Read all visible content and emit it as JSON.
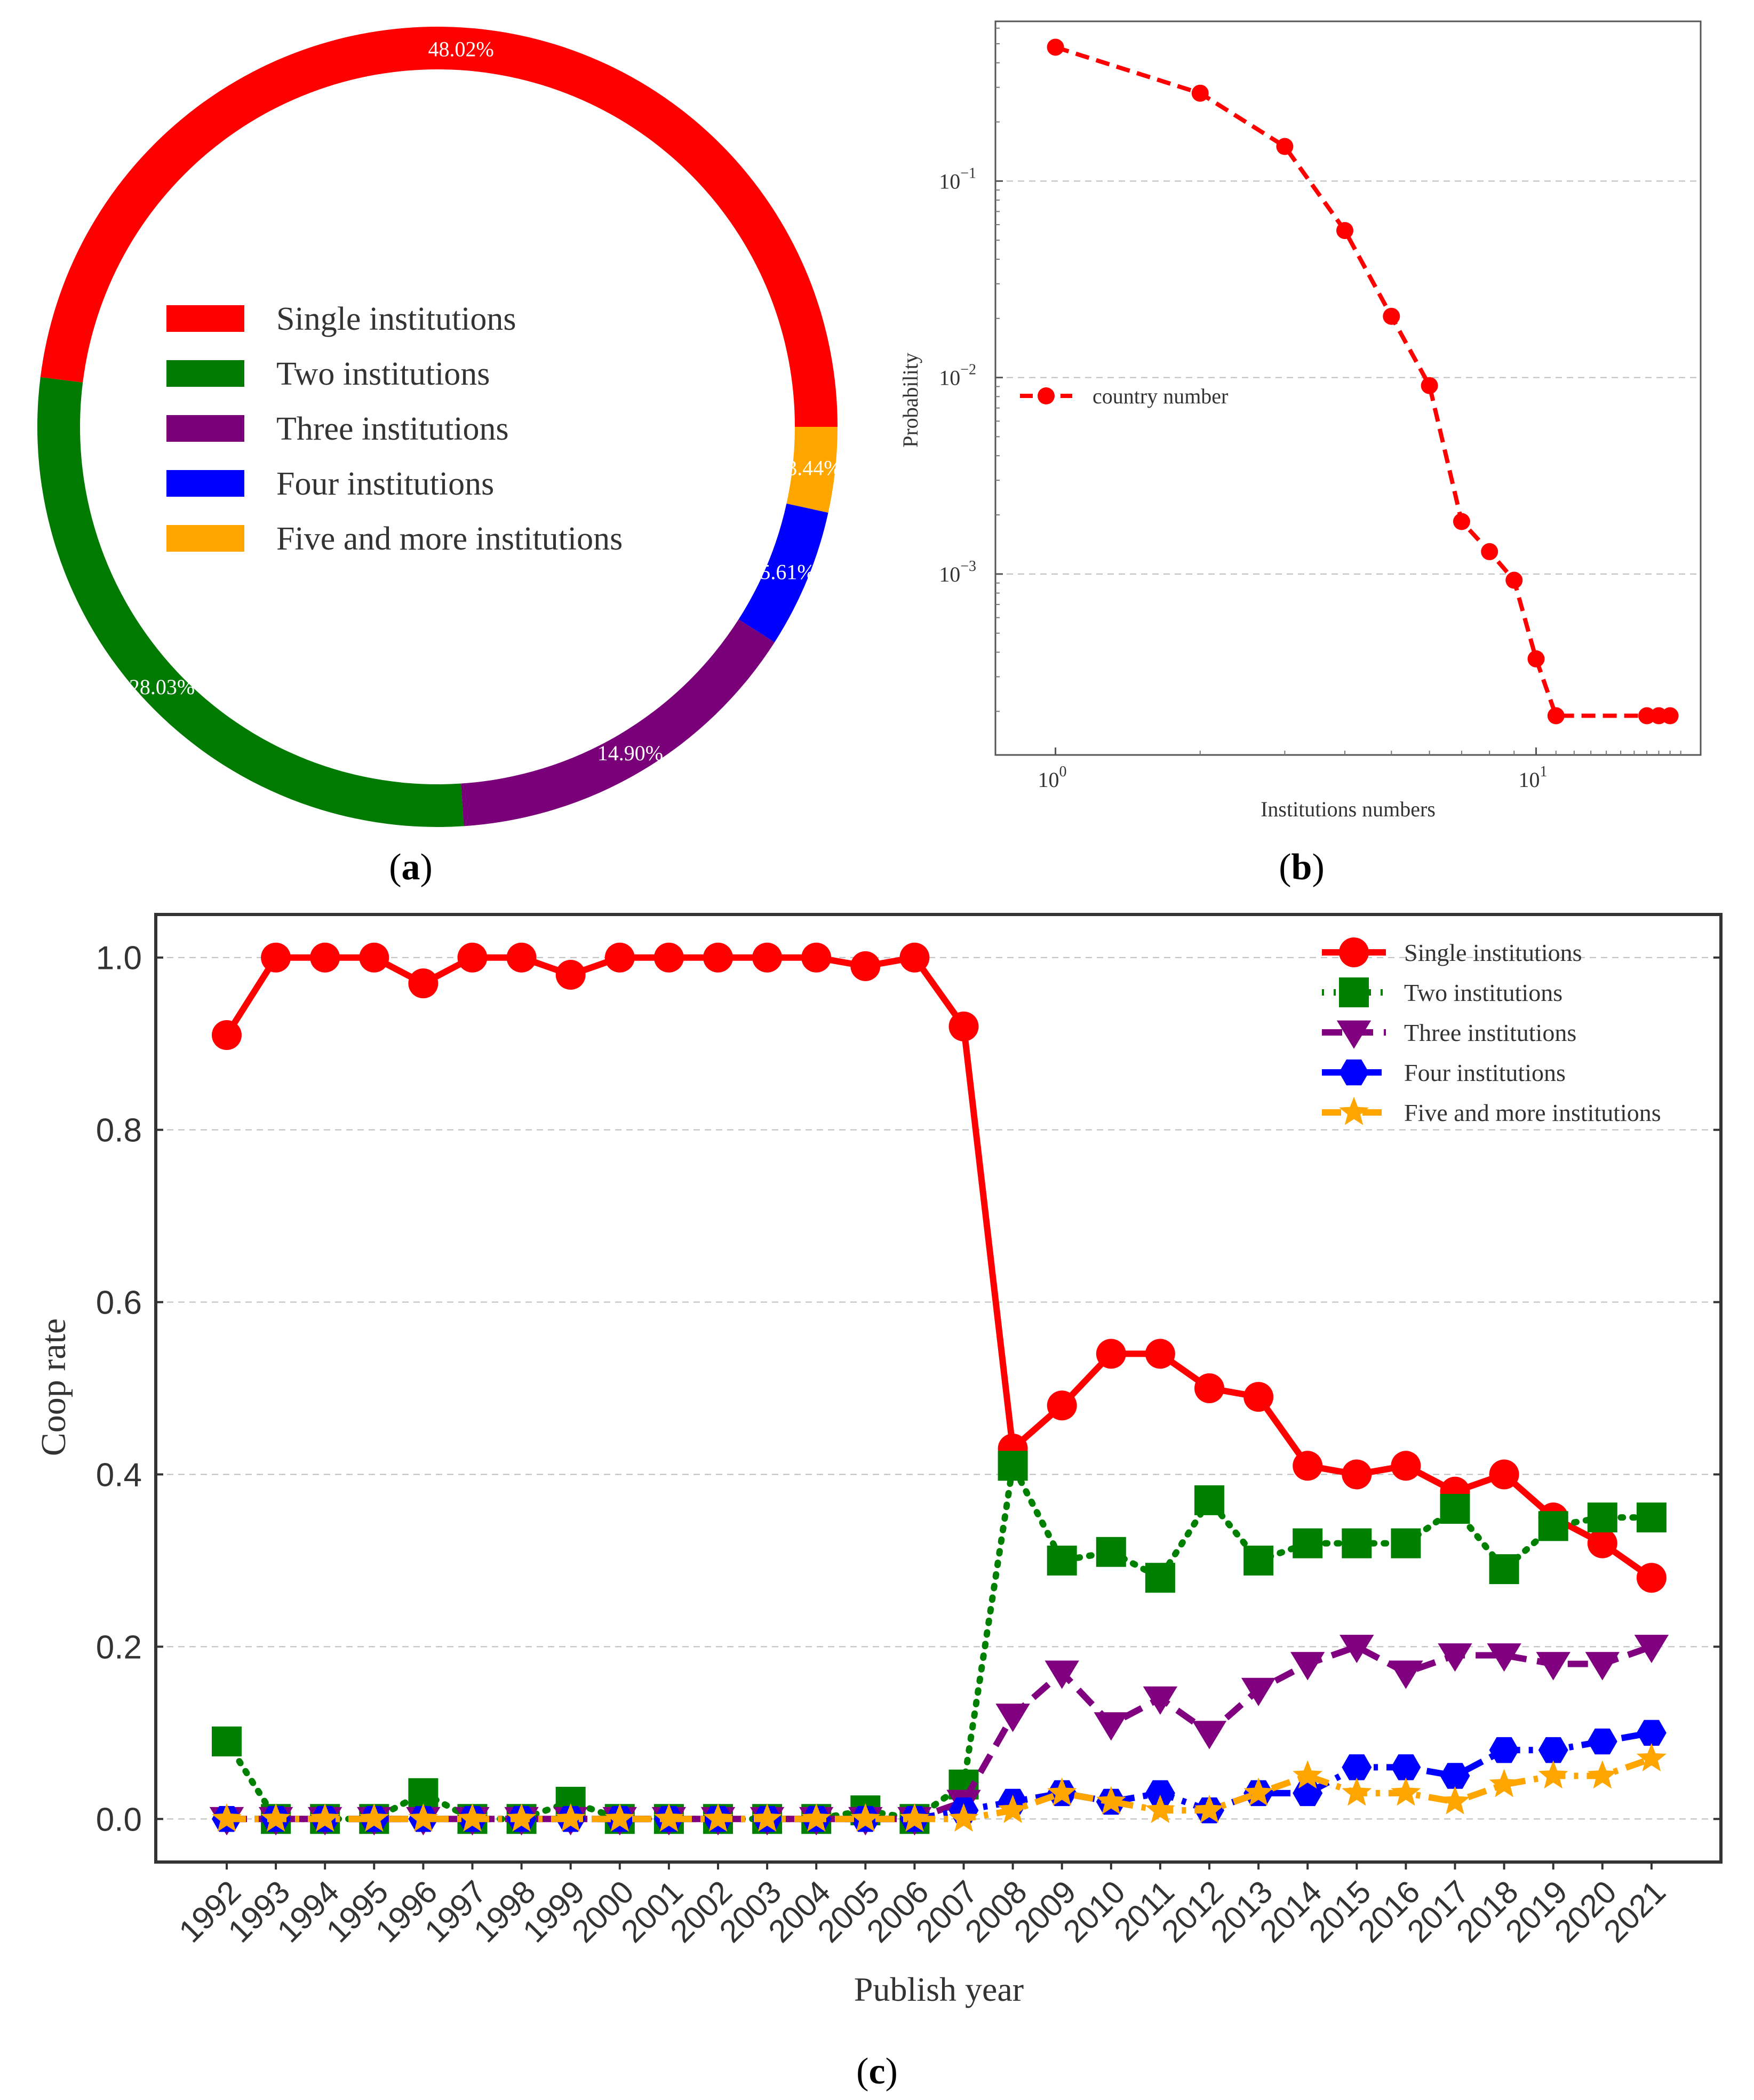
{
  "panels": {
    "a": {
      "label_open": "(",
      "label_letter": "a",
      "label_close": ")"
    },
    "b": {
      "label_open": "(",
      "label_letter": "b",
      "label_close": ")"
    },
    "c": {
      "label_open": "(",
      "label_letter": "c",
      "label_close": ")"
    }
  },
  "chart_data": [
    {
      "id": "a",
      "type": "pie",
      "style": "donut",
      "slices": [
        {
          "name": "Single institutions",
          "value": 48.02,
          "label": "48.02%",
          "color": "#ff0000"
        },
        {
          "name": "Two institutions",
          "value": 28.03,
          "label": "28.03%",
          "color": "#007a00"
        },
        {
          "name": "Three institutions",
          "value": 14.9,
          "label": "14.90%",
          "color": "#7a007a"
        },
        {
          "name": "Four institutions",
          "value": 5.61,
          "label": "5.61%",
          "color": "#0000ff"
        },
        {
          "name": "Five and more institutions",
          "value": 3.44,
          "label": "3.44%",
          "color": "#ffa500"
        }
      ],
      "legend": [
        "Single institutions",
        "Two institutions",
        "Three institutions",
        "Four institutions",
        "Five and more institutions"
      ],
      "legend_placement": "center"
    },
    {
      "id": "b",
      "type": "line",
      "xscale": "log",
      "yscale": "log",
      "xlabel": "Institutions numbers",
      "ylabel": "Probability",
      "xlim": [
        0.75,
        22
      ],
      "ylim": [
        0.00012,
        0.65
      ],
      "x_ticks": [
        {
          "value": 1,
          "base": "10",
          "exp": "0"
        },
        {
          "value": 10,
          "base": "10",
          "exp": "1"
        }
      ],
      "y_ticks": [
        {
          "value": 0.1,
          "base": "10",
          "exp": "−1"
        },
        {
          "value": 0.01,
          "base": "10",
          "exp": "−2"
        },
        {
          "value": 0.001,
          "base": "10",
          "exp": "−3"
        }
      ],
      "grid": "horizontal",
      "legend_placement": "center-left",
      "series": [
        {
          "name": "country number",
          "color": "#ff0000",
          "marker": "circle",
          "line": "dashed",
          "x": [
            1,
            2,
            3,
            4,
            5,
            6,
            7,
            8,
            9,
            10,
            11,
            17,
            18,
            19
          ],
          "y": [
            0.48,
            0.28,
            0.15,
            0.056,
            0.0205,
            0.0091,
            0.00185,
            0.0013,
            0.00093,
            0.00037,
            0.00019,
            0.00019,
            0.00019,
            0.00019
          ]
        }
      ]
    },
    {
      "id": "c",
      "type": "line",
      "xlabel": "Publish year",
      "ylabel": "Coop rate",
      "ylim": [
        -0.05,
        1.05
      ],
      "y_ticks": [
        "0.0",
        "0.2",
        "0.4",
        "0.6",
        "0.8",
        "1.0"
      ],
      "grid": "horizontal",
      "legend_placement": "top-right",
      "categories": [
        "1992",
        "1993",
        "1994",
        "1995",
        "1996",
        "1997",
        "1998",
        "1999",
        "2000",
        "2001",
        "2002",
        "2003",
        "2004",
        "2005",
        "2006",
        "2007",
        "2008",
        "2009",
        "2010",
        "2011",
        "2012",
        "2013",
        "2014",
        "2015",
        "2016",
        "2017",
        "2018",
        "2019",
        "2020",
        "2021"
      ],
      "series": [
        {
          "name": "Single institutions",
          "color": "#ff0000",
          "marker": "circle",
          "line": "solid",
          "values": [
            0.91,
            1.0,
            1.0,
            1.0,
            0.97,
            1.0,
            1.0,
            0.98,
            1.0,
            1.0,
            1.0,
            1.0,
            1.0,
            0.99,
            1.0,
            0.92,
            0.43,
            0.48,
            0.54,
            0.54,
            0.5,
            0.49,
            0.41,
            0.4,
            0.41,
            0.38,
            0.4,
            0.35,
            0.32,
            0.28
          ]
        },
        {
          "name": "Two institutions",
          "color": "#008000",
          "marker": "square",
          "line": "dotted",
          "values": [
            0.09,
            0.0,
            0.0,
            0.0,
            0.03,
            0.0,
            0.0,
            0.02,
            0.0,
            0.0,
            0.0,
            0.0,
            0.0,
            0.01,
            0.0,
            0.04,
            0.41,
            0.3,
            0.31,
            0.28,
            0.37,
            0.3,
            0.32,
            0.32,
            0.32,
            0.36,
            0.29,
            0.34,
            0.35,
            0.35
          ]
        },
        {
          "name": "Three institutions",
          "color": "#800080",
          "marker": "triangle-down",
          "line": "dashed",
          "values": [
            0.0,
            0.0,
            0.0,
            0.0,
            0.0,
            0.0,
            0.0,
            0.0,
            0.0,
            0.0,
            0.0,
            0.0,
            0.0,
            0.0,
            0.0,
            0.02,
            0.12,
            0.17,
            0.11,
            0.14,
            0.1,
            0.15,
            0.18,
            0.2,
            0.17,
            0.19,
            0.19,
            0.18,
            0.18,
            0.2
          ]
        },
        {
          "name": "Four institutions",
          "color": "#0000ff",
          "marker": "hexagon",
          "line": "dashdot",
          "values": [
            0.0,
            0.0,
            0.0,
            0.0,
            0.0,
            0.0,
            0.0,
            0.0,
            0.0,
            0.0,
            0.0,
            0.0,
            0.0,
            0.0,
            0.0,
            0.01,
            0.02,
            0.03,
            0.02,
            0.03,
            0.01,
            0.03,
            0.03,
            0.06,
            0.06,
            0.05,
            0.08,
            0.08,
            0.09,
            0.1
          ]
        },
        {
          "name": "Five and more institutions",
          "color": "#ffa500",
          "marker": "star",
          "line": "dashdot",
          "values": [
            0.0,
            0.0,
            0.0,
            0.0,
            0.0,
            0.0,
            0.0,
            0.0,
            0.0,
            0.0,
            0.0,
            0.0,
            0.0,
            0.0,
            0.0,
            0.0,
            0.01,
            0.03,
            0.02,
            0.01,
            0.01,
            0.03,
            0.05,
            0.03,
            0.03,
            0.02,
            0.04,
            0.05,
            0.05,
            0.07
          ]
        }
      ]
    }
  ]
}
